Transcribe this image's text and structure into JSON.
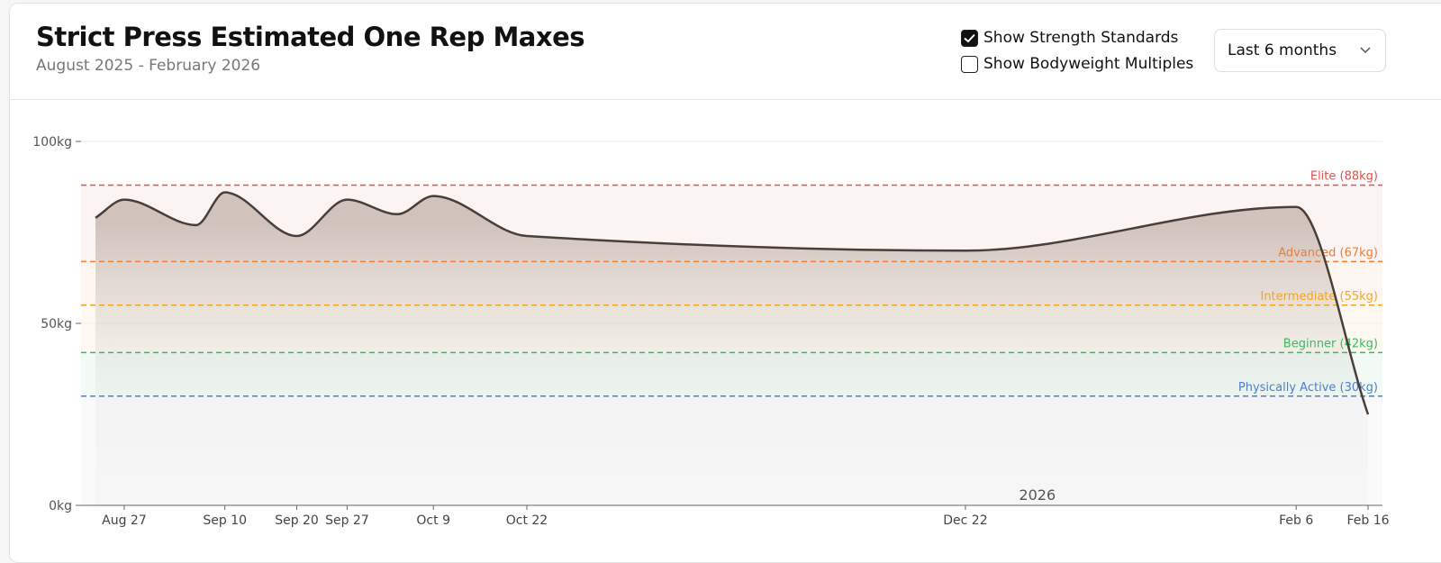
{
  "header": {
    "title": "Strict Press Estimated One Rep Maxes",
    "subtitle": "August 2025 - February 2026"
  },
  "controls": {
    "checkboxes": [
      {
        "label": "Show Strength Standards",
        "checked": true
      },
      {
        "label": "Show Bodyweight Multiples",
        "checked": false
      }
    ],
    "range_select": "Last 6 months"
  },
  "chart_data": {
    "type": "line",
    "color": "#4a3f36",
    "x": [
      "Aug 23",
      "Aug 27",
      "Sep 6",
      "Sep 10",
      "Sep 20",
      "Sep 27",
      "Oct 4",
      "Oct 9",
      "Oct 22",
      "Dec 22",
      "Feb 6",
      "Feb 16"
    ],
    "values": [
      79,
      84,
      77,
      86,
      74,
      84,
      80,
      85,
      74,
      70,
      82,
      25
    ],
    "ylim": [
      0,
      100
    ],
    "yticks": [
      {
        "value": 0,
        "label": "0kg"
      },
      {
        "value": 50,
        "label": "50kg"
      },
      {
        "value": 100,
        "label": "100kg"
      }
    ],
    "xticks": [
      "Aug 27",
      "Sep 10",
      "Sep 20",
      "Sep 27",
      "Oct 9",
      "Oct 22",
      "Dec 22",
      "Feb 6",
      "Feb 16"
    ],
    "year_marker": "2026",
    "grid": true,
    "standards": [
      {
        "label": "Elite (88kg)",
        "value": 88,
        "color": "#d9534f"
      },
      {
        "label": "Advanced (67kg)",
        "value": 67,
        "color": "#ef7d32"
      },
      {
        "label": "Intermediate (55kg)",
        "value": 55,
        "color": "#f0a52a"
      },
      {
        "label": "Beginner (42kg)",
        "value": 42,
        "color": "#3cb864"
      },
      {
        "label": "Physically Active (30kg)",
        "value": 30,
        "color": "#4a7fd1"
      }
    ]
  }
}
